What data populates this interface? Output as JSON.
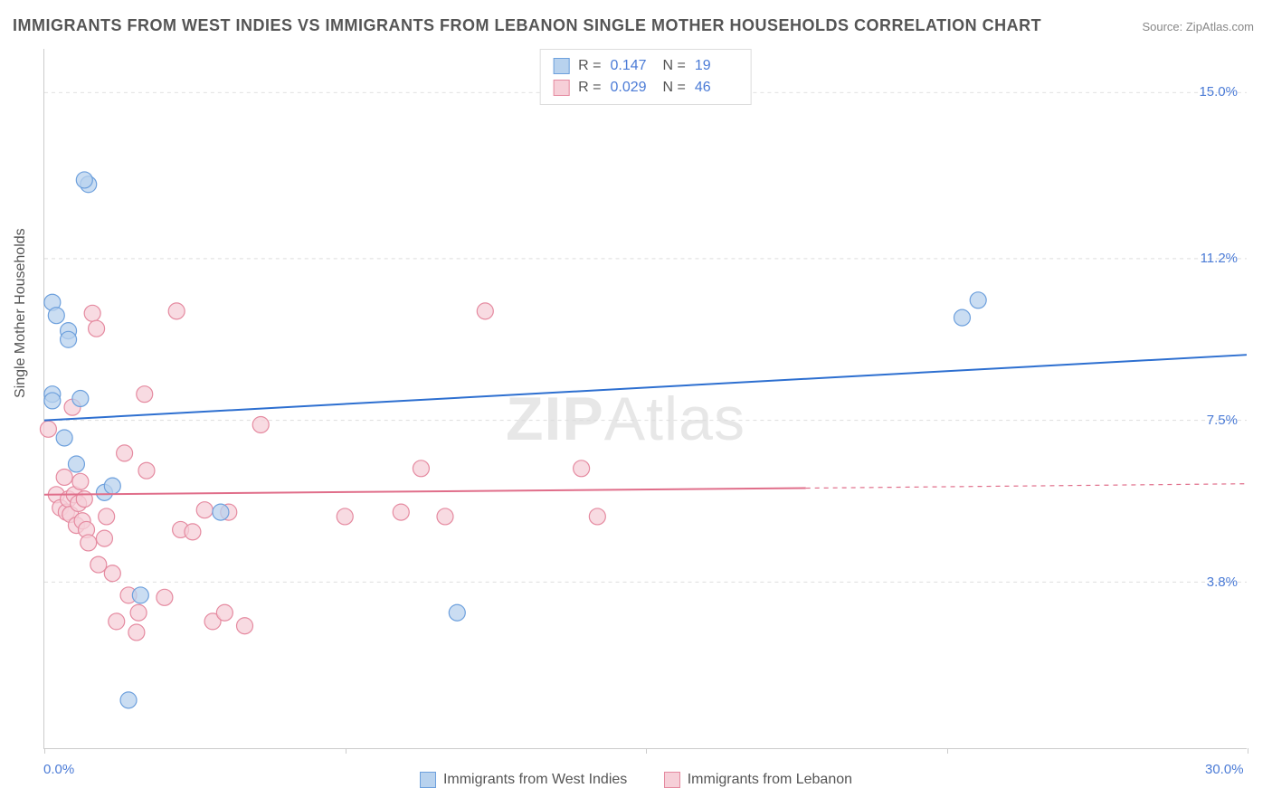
{
  "title": "IMMIGRANTS FROM WEST INDIES VS IMMIGRANTS FROM LEBANON SINGLE MOTHER HOUSEHOLDS CORRELATION CHART",
  "source": "Source: ZipAtlas.com",
  "ylabel": "Single Mother Households",
  "watermark": {
    "bold": "ZIP",
    "rest": "Atlas"
  },
  "legend_bottom": {
    "series1_label": "Immigrants from West Indies",
    "series2_label": "Immigrants from Lebanon"
  },
  "stats_box": {
    "r_label": "R =",
    "n_label": "N =",
    "series1": {
      "r": "0.147",
      "n": "19"
    },
    "series2": {
      "r": "0.029",
      "n": "46"
    }
  },
  "chart": {
    "type": "scatter",
    "xlim": [
      0,
      30
    ],
    "ylim": [
      0,
      16
    ],
    "x_ticks": [
      0,
      7.5,
      15,
      22.5,
      30
    ],
    "x_tick_labels_shown": {
      "0": "0.0%",
      "30": "30.0%"
    },
    "y_ticks": [
      3.8,
      7.5,
      11.2,
      15.0
    ],
    "y_tick_labels": [
      "3.8%",
      "7.5%",
      "11.2%",
      "15.0%"
    ],
    "grid_color": "#dddddd",
    "axis_color": "#cccccc",
    "background_color": "#ffffff",
    "marker_radius": 9,
    "marker_stroke_width": 1.2,
    "trend_line_width": 2,
    "series1": {
      "name": "Immigrants from West Indies",
      "fill": "#b8d2ee",
      "stroke": "#6da0dd",
      "trend_color": "#2d6fd0",
      "trend": {
        "y_at_x0": 7.5,
        "y_at_x30": 9.0
      },
      "points": [
        [
          0.2,
          10.2
        ],
        [
          0.2,
          8.1
        ],
        [
          0.2,
          7.95
        ],
        [
          0.6,
          9.55
        ],
        [
          0.6,
          9.35
        ],
        [
          0.8,
          6.5
        ],
        [
          1.1,
          12.9
        ],
        [
          1.5,
          5.85
        ],
        [
          2.1,
          1.1
        ],
        [
          2.4,
          3.5
        ],
        [
          4.4,
          5.4
        ],
        [
          10.3,
          3.1
        ],
        [
          22.9,
          9.85
        ],
        [
          23.3,
          10.25
        ],
        [
          0.3,
          9.9
        ],
        [
          1.0,
          13.0
        ],
        [
          0.5,
          7.1
        ],
        [
          1.7,
          6.0
        ],
        [
          0.9,
          8.0
        ]
      ]
    },
    "series2": {
      "name": "Immigrants from Lebanon",
      "fill": "#f6cfd8",
      "stroke": "#e58aa0",
      "trend_color": "#e06e8a",
      "trend": {
        "y_at_x0": 5.8,
        "y_at_x19": 5.95,
        "extrapolate_to_x": 30,
        "y_at_x30": 6.05
      },
      "points": [
        [
          0.1,
          7.3
        ],
        [
          0.3,
          5.8
        ],
        [
          0.4,
          5.5
        ],
        [
          0.5,
          6.2
        ],
        [
          0.55,
          5.4
        ],
        [
          0.6,
          5.7
        ],
        [
          0.65,
          5.35
        ],
        [
          0.7,
          7.8
        ],
        [
          0.75,
          5.8
        ],
        [
          0.8,
          5.1
        ],
        [
          0.85,
          5.6
        ],
        [
          0.9,
          6.1
        ],
        [
          0.95,
          5.2
        ],
        [
          1.0,
          5.7
        ],
        [
          1.05,
          5.0
        ],
        [
          1.1,
          4.7
        ],
        [
          1.2,
          9.95
        ],
        [
          1.3,
          9.6
        ],
        [
          1.35,
          4.2
        ],
        [
          1.5,
          4.8
        ],
        [
          1.55,
          5.3
        ],
        [
          1.7,
          4.0
        ],
        [
          1.8,
          2.9
        ],
        [
          2.0,
          6.75
        ],
        [
          2.1,
          3.5
        ],
        [
          2.3,
          2.65
        ],
        [
          2.35,
          3.1
        ],
        [
          2.5,
          8.1
        ],
        [
          2.55,
          6.35
        ],
        [
          3.0,
          3.45
        ],
        [
          3.3,
          10.0
        ],
        [
          3.4,
          5.0
        ],
        [
          3.7,
          4.95
        ],
        [
          4.0,
          5.45
        ],
        [
          4.2,
          2.9
        ],
        [
          4.5,
          3.1
        ],
        [
          4.6,
          5.4
        ],
        [
          5.0,
          2.8
        ],
        [
          5.4,
          7.4
        ],
        [
          7.5,
          5.3
        ],
        [
          8.9,
          5.4
        ],
        [
          9.4,
          6.4
        ],
        [
          10.0,
          5.3
        ],
        [
          11.0,
          10.0
        ],
        [
          13.4,
          6.4
        ],
        [
          13.8,
          5.3
        ]
      ]
    }
  },
  "colors": {
    "title": "#555555",
    "source": "#888888",
    "label_text": "#555555",
    "value_text": "#4b7bd6"
  },
  "fonts": {
    "title_size": 18,
    "label_size": 16,
    "tick_size": 15,
    "watermark_size": 68
  }
}
